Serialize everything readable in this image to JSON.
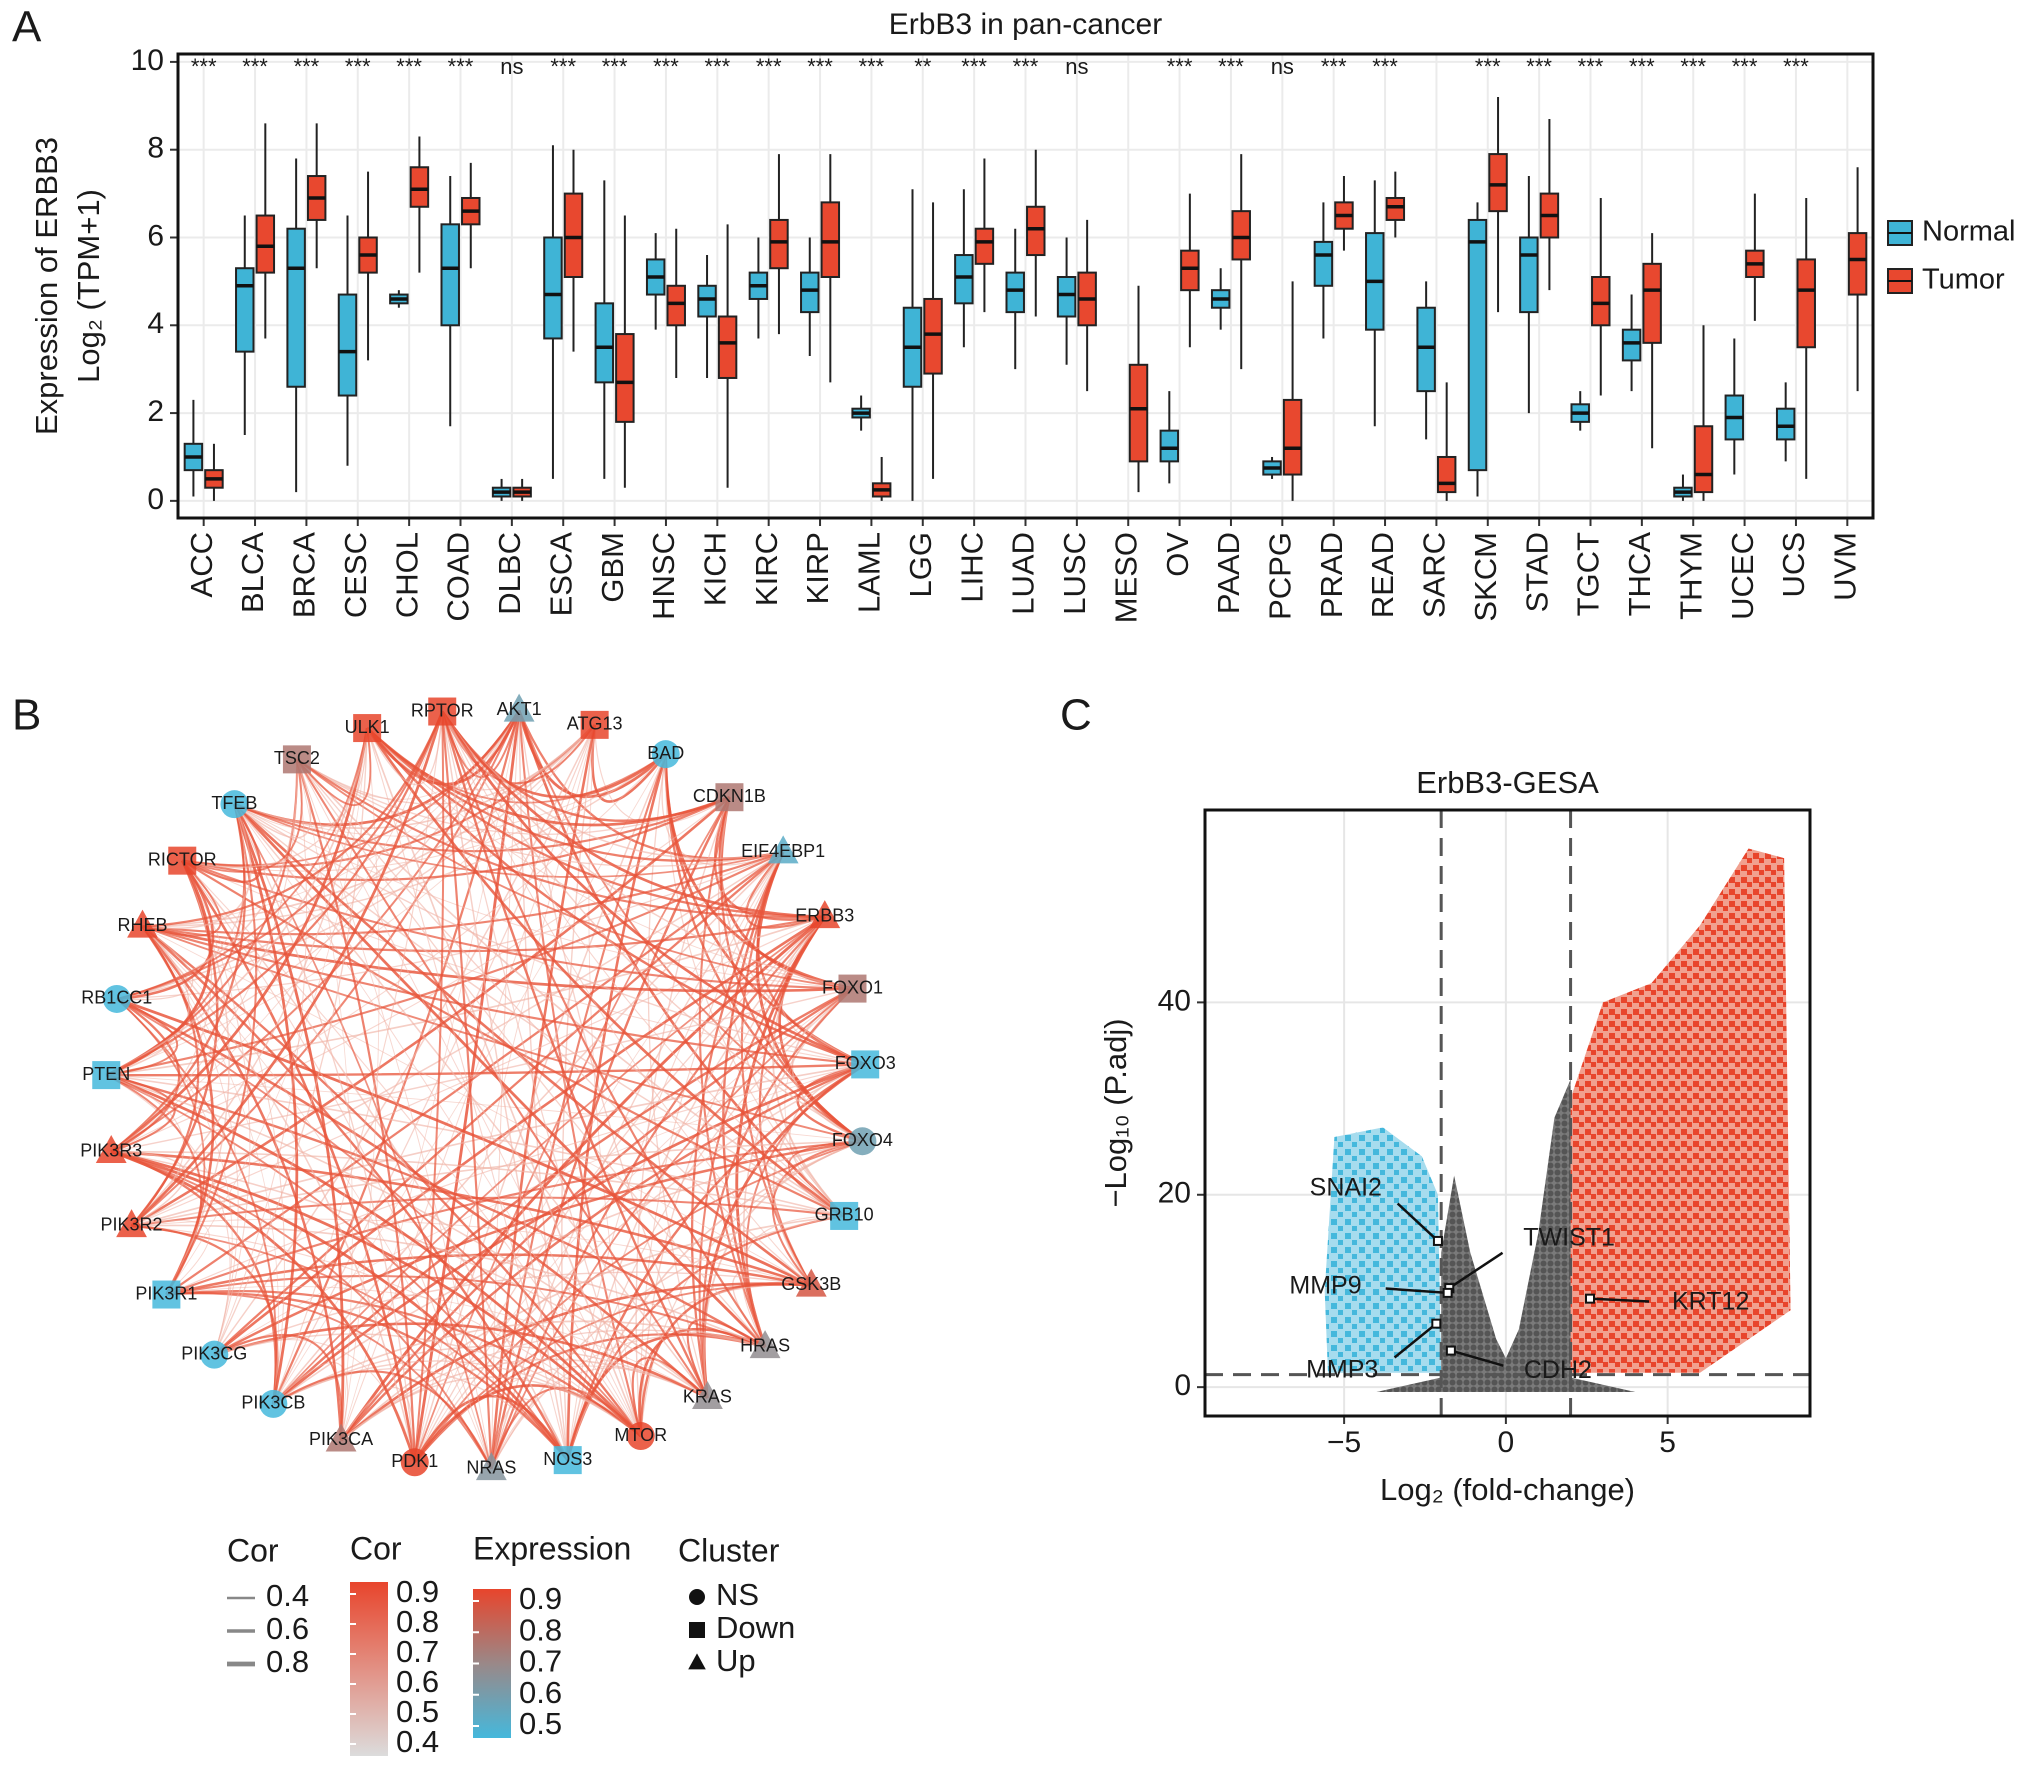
{
  "chart_data": [
    {
      "type": "boxplot",
      "panel": "A",
      "title": "ErbB3 in pan-cancer",
      "y_label": [
        "Expression of ERBB3",
        "Log₂ (TPM+1)"
      ],
      "categories": [
        "ACC",
        "BLCA",
        "BRCA",
        "CESC",
        "CHOL",
        "COAD",
        "DLBC",
        "ESCA",
        "GBM",
        "HNSC",
        "KICH",
        "KIRC",
        "KIRP",
        "LAML",
        "LGG",
        "LIHC",
        "LUAD",
        "LUSC",
        "MESO",
        "OV",
        "PAAD",
        "PCPG",
        "PRAD",
        "READ",
        "SARC",
        "SKCM",
        "STAD",
        "TGCT",
        "THCA",
        "THYM",
        "UCEC",
        "UCS",
        "UVM"
      ],
      "annotations": [
        "***",
        "***",
        "***",
        "***",
        "***",
        "***",
        "ns",
        "***",
        "***",
        "***",
        "***",
        "***",
        "***",
        "***",
        "**",
        "***",
        "***",
        "ns",
        null,
        "***",
        "***",
        "ns",
        "***",
        "***",
        null,
        "***",
        "***",
        "***",
        "***",
        "***",
        "***",
        "***",
        null
      ],
      "series": [
        {
          "name": "Normal",
          "color": "#3fb4d6",
          "low": [
            0.1,
            1.5,
            0.2,
            0.8,
            4.4,
            1.7,
            0,
            0.5,
            0.5,
            3.9,
            2.8,
            3.7,
            3.3,
            1.6,
            0,
            3.5,
            3.0,
            3.1,
            null,
            0.4,
            3.9,
            0.5,
            3.7,
            1.7,
            1.4,
            0.1,
            2.0,
            1.6,
            2.5,
            0,
            0.6,
            0.9,
            null
          ],
          "q1": [
            0.7,
            3.4,
            2.6,
            2.4,
            4.5,
            4.0,
            0.1,
            3.7,
            2.7,
            4.7,
            4.2,
            4.6,
            4.3,
            1.9,
            2.6,
            4.5,
            4.3,
            4.2,
            null,
            0.9,
            4.4,
            0.6,
            4.9,
            3.9,
            2.5,
            0.7,
            4.3,
            1.8,
            3.2,
            0.1,
            1.4,
            1.4,
            null
          ],
          "median": [
            1.0,
            4.9,
            5.3,
            3.4,
            4.6,
            5.3,
            0.2,
            4.7,
            3.5,
            5.1,
            4.6,
            4.9,
            4.8,
            2.0,
            3.5,
            5.1,
            4.8,
            4.7,
            null,
            1.2,
            4.6,
            0.75,
            5.6,
            5.0,
            3.5,
            5.9,
            5.6,
            2.0,
            3.6,
            0.2,
            1.9,
            1.7,
            null
          ],
          "q3": [
            1.3,
            5.3,
            6.2,
            4.7,
            4.7,
            6.3,
            0.3,
            6.0,
            4.5,
            5.5,
            4.9,
            5.2,
            5.2,
            2.1,
            4.4,
            5.6,
            5.2,
            5.1,
            null,
            1.6,
            4.8,
            0.9,
            5.9,
            6.1,
            4.4,
            6.4,
            6.0,
            2.2,
            3.9,
            0.3,
            2.4,
            2.1,
            null
          ],
          "high": [
            2.3,
            6.5,
            7.8,
            6.5,
            4.8,
            7.4,
            0.5,
            8.1,
            7.3,
            6.1,
            5.6,
            6.0,
            6.0,
            2.4,
            7.1,
            7.1,
            6.2,
            6.0,
            null,
            2.5,
            5.3,
            1.0,
            6.8,
            7.3,
            5.0,
            6.8,
            7.4,
            2.5,
            4.7,
            0.6,
            3.7,
            2.7,
            null
          ]
        },
        {
          "name": "Tumor",
          "color": "#e8482f",
          "low": [
            0,
            3.7,
            5.3,
            3.2,
            5.2,
            5.3,
            0,
            3.4,
            0.3,
            2.8,
            0.3,
            3.8,
            2.7,
            0,
            0.5,
            4.3,
            4.2,
            2.5,
            0.2,
            3.5,
            3.0,
            0,
            5.7,
            6.0,
            0,
            4.3,
            4.8,
            2.4,
            1.2,
            0,
            4.1,
            0.5,
            2.5
          ],
          "q1": [
            0.3,
            5.2,
            6.4,
            5.2,
            6.7,
            6.3,
            0.1,
            5.1,
            1.8,
            4.0,
            2.8,
            5.3,
            5.1,
            0.1,
            2.9,
            5.4,
            5.6,
            4.0,
            0.9,
            4.8,
            5.5,
            0.6,
            6.2,
            6.4,
            0.2,
            6.6,
            6.0,
            4.0,
            3.6,
            0.2,
            5.1,
            3.5,
            4.7
          ],
          "median": [
            0.5,
            5.8,
            6.9,
            5.6,
            7.1,
            6.6,
            0.2,
            6.0,
            2.7,
            4.5,
            3.6,
            5.9,
            5.9,
            0.25,
            3.8,
            5.9,
            6.2,
            4.6,
            2.1,
            5.3,
            6.0,
            1.2,
            6.5,
            6.7,
            0.4,
            7.2,
            6.5,
            4.5,
            4.8,
            0.6,
            5.4,
            4.8,
            5.5
          ],
          "q3": [
            0.7,
            6.5,
            7.4,
            6.0,
            7.6,
            6.9,
            0.3,
            7.0,
            3.8,
            4.9,
            4.2,
            6.4,
            6.8,
            0.4,
            4.6,
            6.2,
            6.7,
            5.2,
            3.1,
            5.7,
            6.6,
            2.3,
            6.8,
            6.9,
            1.0,
            7.9,
            7.0,
            5.1,
            5.4,
            1.7,
            5.7,
            5.5,
            6.1
          ],
          "high": [
            1.3,
            8.6,
            8.6,
            7.5,
            8.3,
            7.7,
            0.5,
            8.0,
            6.5,
            6.2,
            6.3,
            7.9,
            7.9,
            1.0,
            6.8,
            7.8,
            8.0,
            6.4,
            4.9,
            7.0,
            7.9,
            5.0,
            7.4,
            7.5,
            2.7,
            9.2,
            8.7,
            6.9,
            6.1,
            4.0,
            7.0,
            6.9,
            7.6
          ]
        }
      ],
      "ylim": [
        -0.39,
        10.18
      ],
      "yticks": [
        0,
        2,
        4,
        6,
        8,
        10
      ],
      "grid": true,
      "legend": "right"
    },
    {
      "type": "network",
      "panel": "B",
      "nodes": [
        {
          "label": "AKT1",
          "cluster": "Up",
          "expression": 0.6
        },
        {
          "label": "ATG13",
          "cluster": "Down",
          "expression": 0.9
        },
        {
          "label": "BAD",
          "cluster": "NS",
          "expression": 0.5
        },
        {
          "label": "CDKN1B",
          "cluster": "Down",
          "expression": 0.75
        },
        {
          "label": "EIF4EBP1",
          "cluster": "Up",
          "expression": 0.55
        },
        {
          "label": "ERBB3",
          "cluster": "Up",
          "expression": 0.9
        },
        {
          "label": "FOXO1",
          "cluster": "Down",
          "expression": 0.75
        },
        {
          "label": "FOXO3",
          "cluster": "Down",
          "expression": 0.5
        },
        {
          "label": "FOXO4",
          "cluster": "NS",
          "expression": 0.6
        },
        {
          "label": "GRB10",
          "cluster": "Down",
          "expression": 0.5
        },
        {
          "label": "GSK3B",
          "cluster": "Up",
          "expression": 0.85
        },
        {
          "label": "HRAS",
          "cluster": "Up",
          "expression": 0.68
        },
        {
          "label": "KRAS",
          "cluster": "Up",
          "expression": 0.68
        },
        {
          "label": "MTOR",
          "cluster": "NS",
          "expression": 0.9
        },
        {
          "label": "NOS3",
          "cluster": "Down",
          "expression": 0.5
        },
        {
          "label": "NRAS",
          "cluster": "Up",
          "expression": 0.65
        },
        {
          "label": "PDK1",
          "cluster": "NS",
          "expression": 0.9
        },
        {
          "label": "PIK3CA",
          "cluster": "Up",
          "expression": 0.75
        },
        {
          "label": "PIK3CB",
          "cluster": "NS",
          "expression": 0.5
        },
        {
          "label": "PIK3CG",
          "cluster": "NS",
          "expression": 0.5
        },
        {
          "label": "PIK3R1",
          "cluster": "Down",
          "expression": 0.5
        },
        {
          "label": "PIK3R2",
          "cluster": "Up",
          "expression": 0.9
        },
        {
          "label": "PIK3R3",
          "cluster": "Up",
          "expression": 0.9
        },
        {
          "label": "PTEN",
          "cluster": "Down",
          "expression": 0.5
        },
        {
          "label": "RB1CC1",
          "cluster": "NS",
          "expression": 0.5
        },
        {
          "label": "RHEB",
          "cluster": "Up",
          "expression": 0.9
        },
        {
          "label": "RICTOR",
          "cluster": "Down",
          "expression": 0.9
        },
        {
          "label": "TFEB",
          "cluster": "NS",
          "expression": 0.5
        },
        {
          "label": "TSC2",
          "cluster": "Down",
          "expression": 0.75
        },
        {
          "label": "ULK1",
          "cluster": "Down",
          "expression": 0.9
        },
        {
          "label": "RPTOR",
          "cluster": "Down",
          "expression": 0.9
        }
      ],
      "legend_width": {
        "title": "Cor",
        "values": [
          0.4,
          0.6,
          0.8
        ]
      },
      "legend_color": {
        "title": "Cor",
        "ticks": [
          0.9,
          0.8,
          0.7,
          0.6,
          0.5,
          0.4
        ]
      },
      "legend_expression": {
        "title": "Expression",
        "ticks": [
          0.9,
          0.8,
          0.7,
          0.6,
          0.5
        ]
      },
      "legend_cluster": {
        "title": "Cluster",
        "items": [
          "NS",
          "Down",
          "Up"
        ]
      }
    },
    {
      "type": "volcano",
      "panel": "C",
      "title": "ErbB3-GESA",
      "x_label": "Log₂ (fold-change)",
      "y_label": "−Log₁₀ (P.adj)",
      "xlim": [
        -9.3,
        9.4
      ],
      "ylim": [
        -3,
        60
      ],
      "xticks": [
        {
          "value": -5,
          "label": "−5"
        },
        0,
        5
      ],
      "yticks": [
        0,
        20,
        40
      ],
      "fc_threshold": [
        -2,
        2
      ],
      "p_threshold": 1.3,
      "grid": true,
      "colors": {
        "down": "#45b8dc",
        "ns": "#5a5a5a",
        "up": "#e8452c"
      },
      "genes": [
        {
          "label": "SNAI2",
          "x": -2.1,
          "y": 15.2
        },
        {
          "label": "TWIST1",
          "x": -1.75,
          "y": 10.3
        },
        {
          "label": "MMP9",
          "x": -1.8,
          "y": 9.8
        },
        {
          "label": "MMP3",
          "x": -2.15,
          "y": 6.6
        },
        {
          "label": "CDH2",
          "x": -1.7,
          "y": 3.8
        },
        {
          "label": "KRT12",
          "x": 2.6,
          "y": 9.2
        }
      ]
    }
  ]
}
